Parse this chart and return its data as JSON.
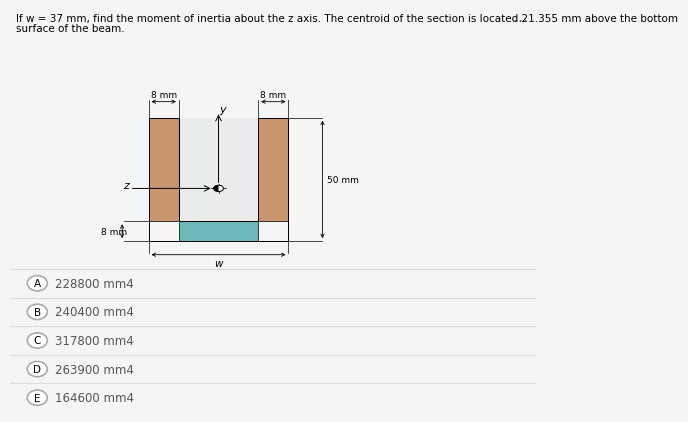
{
  "title_line1": "If w = 37 mm, find the moment of inertia about the z axis. The centroid of the section is located 21.355 mm above the bottom",
  "title_line2": "surface of the beam.",
  "title_fontsize": 7.5,
  "options": [
    [
      "A",
      "228800 mm4"
    ],
    [
      "B",
      "240400 mm4"
    ],
    [
      "C",
      "317800 mm4"
    ],
    [
      "D",
      "263900 mm4"
    ],
    [
      "E",
      "164600 mm4"
    ]
  ],
  "flange_color": "#c8956c",
  "web_color": "#6db8b8",
  "diagram_bg": "#ebebeb",
  "page_bg": "#f5f5f5",
  "white_bg": "#ffffff",
  "option_text_color": "#555555",
  "separator_color": "#dddddd"
}
